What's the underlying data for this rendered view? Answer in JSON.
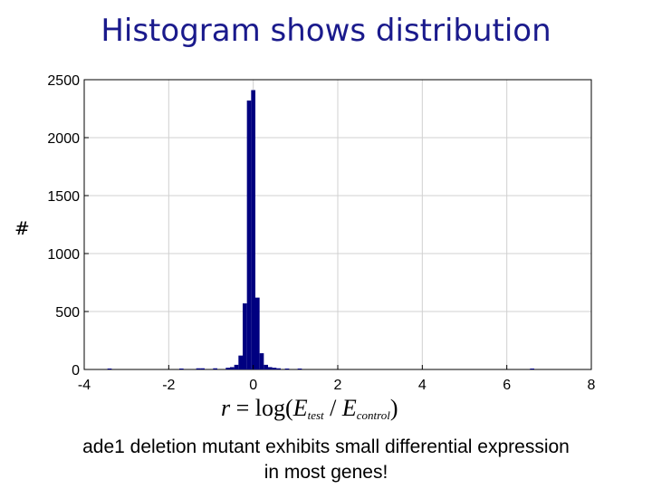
{
  "title": "Histogram shows distribution",
  "y_axis_symbol": "#",
  "x_formula": {
    "r": "r",
    "eq": "=",
    "log": "log(",
    "e_test": "E",
    "test_sub": "test",
    "slash": "/",
    "e_control": "E",
    "control_sub": "control",
    "close": ")"
  },
  "caption_line1": "ade1 deletion mutant exhibits small differential expression",
  "caption_line2": "in most genes!",
  "colors": {
    "bar": "#000080",
    "title": "#1a1a8c",
    "grid": "#d0d0d0"
  },
  "chart_data": {
    "type": "bar",
    "title": "",
    "xlabel": "",
    "ylabel": "",
    "xlim": [
      -4,
      8
    ],
    "ylim": [
      0,
      2500
    ],
    "x_ticks": [
      -4,
      -2,
      0,
      2,
      4,
      6,
      8
    ],
    "y_ticks": [
      0,
      500,
      1000,
      1500,
      2000,
      2500
    ],
    "grid": true,
    "bin_width": 0.1,
    "bins": [
      {
        "x": -3.4,
        "count": 8
      },
      {
        "x": -1.7,
        "count": 8
      },
      {
        "x": -1.3,
        "count": 10
      },
      {
        "x": -1.2,
        "count": 10
      },
      {
        "x": -0.9,
        "count": 10
      },
      {
        "x": -0.6,
        "count": 15
      },
      {
        "x": -0.5,
        "count": 20
      },
      {
        "x": -0.4,
        "count": 40
      },
      {
        "x": -0.3,
        "count": 120
      },
      {
        "x": -0.2,
        "count": 570
      },
      {
        "x": -0.1,
        "count": 2320
      },
      {
        "x": 0.0,
        "count": 2410
      },
      {
        "x": 0.1,
        "count": 620
      },
      {
        "x": 0.2,
        "count": 140
      },
      {
        "x": 0.3,
        "count": 40
      },
      {
        "x": 0.4,
        "count": 20
      },
      {
        "x": 0.5,
        "count": 15
      },
      {
        "x": 0.6,
        "count": 10
      },
      {
        "x": 0.8,
        "count": 8
      },
      {
        "x": 1.1,
        "count": 8
      },
      {
        "x": 6.6,
        "count": 8
      }
    ]
  }
}
